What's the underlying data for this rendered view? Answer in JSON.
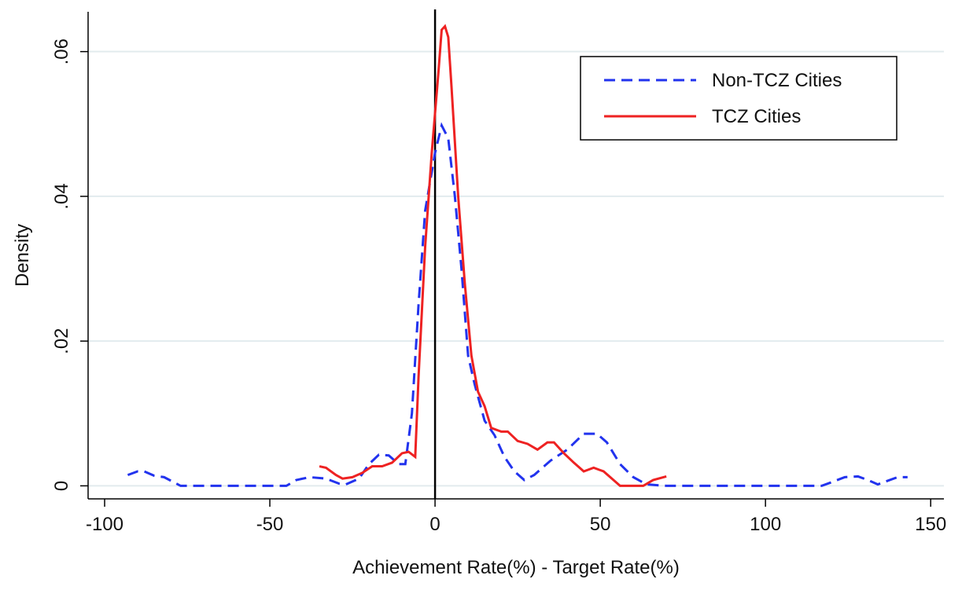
{
  "chart_data": {
    "type": "line",
    "xlabel": "Achievement Rate(%) - Target Rate(%)",
    "ylabel": "Density",
    "xlim": [
      -105,
      154
    ],
    "ylim": [
      -0.0018,
      0.0655
    ],
    "xticks": [
      -100,
      -50,
      0,
      50,
      100,
      150
    ],
    "yticks": [
      0,
      {
        "value": 0.02,
        "label": ".02"
      },
      {
        "value": 0.04,
        "label": ".04"
      },
      {
        "value": 0.06,
        "label": ".06"
      }
    ],
    "grid": true,
    "legend": "upper right",
    "reference_line_x": 0,
    "series": [
      {
        "name": "Non-TCZ Cities",
        "color": "#2233ee",
        "dash": true,
        "x": [
          -93,
          -90,
          -88,
          -85,
          -82,
          -77,
          -60,
          -45,
          -42,
          -38,
          -33,
          -29,
          -27,
          -23,
          -20,
          -17,
          -14,
          -11,
          -9,
          -7,
          -5,
          -3,
          0,
          2,
          4,
          6,
          8,
          10,
          12,
          15,
          18,
          21,
          24,
          27,
          30,
          35,
          40,
          45,
          49,
          52,
          56,
          60,
          64,
          70,
          100,
          117,
          120,
          124,
          128,
          131,
          134,
          137,
          140,
          143
        ],
        "values": [
          0.0015,
          0.002,
          0.002,
          0.0014,
          0.0012,
          0,
          0,
          0,
          0.0008,
          0.0012,
          0.001,
          0.0003,
          0.0002,
          0.001,
          0.003,
          0.0043,
          0.0042,
          0.003,
          0.003,
          0.01,
          0.025,
          0.038,
          0.046,
          0.0498,
          0.048,
          0.04,
          0.03,
          0.018,
          0.014,
          0.009,
          0.007,
          0.004,
          0.002,
          0.0008,
          0.0015,
          0.0035,
          0.005,
          0.0072,
          0.0072,
          0.006,
          0.003,
          0.0012,
          0.0002,
          0,
          0,
          0,
          0.0005,
          0.0012,
          0.0013,
          0.0008,
          0.0002,
          0.0007,
          0.0012,
          0.0012
        ]
      },
      {
        "name": "TCZ Cities",
        "color": "#ee2222",
        "dash": false,
        "x": [
          -35,
          -33,
          -30,
          -28,
          -25,
          -22,
          -19,
          -16,
          -13,
          -10,
          -8,
          -6,
          -5,
          -3,
          -1,
          1,
          2,
          3,
          4,
          5,
          7,
          9,
          11,
          13,
          15,
          17,
          20,
          22,
          25,
          28,
          31,
          34,
          36,
          39,
          42,
          45,
          48,
          51,
          54,
          56,
          63,
          66,
          70
        ],
        "values": [
          0.0027,
          0.0025,
          0.0015,
          0.001,
          0.0012,
          0.0018,
          0.0027,
          0.0027,
          0.0032,
          0.0045,
          0.0047,
          0.004,
          0.015,
          0.033,
          0.046,
          0.057,
          0.063,
          0.0635,
          0.062,
          0.055,
          0.04,
          0.028,
          0.018,
          0.013,
          0.011,
          0.008,
          0.0075,
          0.0075,
          0.0062,
          0.0058,
          0.005,
          0.006,
          0.006,
          0.0045,
          0.0032,
          0.002,
          0.0025,
          0.002,
          0.0008,
          0,
          0,
          0.0008,
          0.0013
        ]
      }
    ]
  }
}
